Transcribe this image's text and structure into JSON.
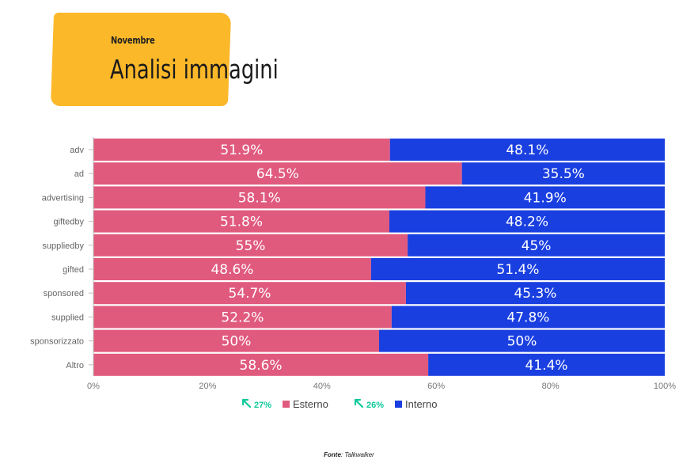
{
  "header": {
    "subtitle": "Novembre",
    "title": "Analisi immagini"
  },
  "chart_data": {
    "type": "bar",
    "orientation": "horizontal",
    "stacked": true,
    "categories": [
      "adv",
      "ad",
      "advertising",
      "giftedby",
      "suppliedby",
      "gifted",
      "sponsored",
      "supplied",
      "sponsorizzato",
      "Altro"
    ],
    "series": [
      {
        "name": "Esterno",
        "color": "#e05a7e",
        "values": [
          51.9,
          64.5,
          58.1,
          51.8,
          55,
          48.6,
          54.7,
          52.2,
          50,
          58.6
        ],
        "labels": [
          "51.9%",
          "64.5%",
          "58.1%",
          "51.8%",
          "55%",
          "48.6%",
          "54.7%",
          "52.2%",
          "50%",
          "58.6%"
        ]
      },
      {
        "name": "Interno",
        "color": "#1a3fe0",
        "values": [
          48.1,
          35.5,
          41.9,
          48.2,
          45,
          51.4,
          45.3,
          47.8,
          50,
          41.4
        ],
        "labels": [
          "48.1%",
          "35.5%",
          "41.9%",
          "48.2%",
          "45%",
          "51.4%",
          "45.3%",
          "47.8%",
          "50%",
          "41.4%"
        ]
      }
    ],
    "xlim": [
      0,
      100
    ],
    "xticks": [
      "0%",
      "20%",
      "40%",
      "60%",
      "80%",
      "100%"
    ],
    "grid": false,
    "legend_position": "bottom",
    "legend": [
      {
        "trend": "27%",
        "trend_icon": "arrow-up-left-icon",
        "trend_color": "#12c99a",
        "label": "Esterno",
        "color": "#e05a7e"
      },
      {
        "trend": "26%",
        "trend_icon": "arrow-up-left-icon",
        "trend_color": "#12c99a",
        "label": "Interno",
        "color": "#1a3fe0"
      }
    ]
  },
  "footer": {
    "source_label": "Fonte",
    "source_value": ": Talkwalker"
  }
}
